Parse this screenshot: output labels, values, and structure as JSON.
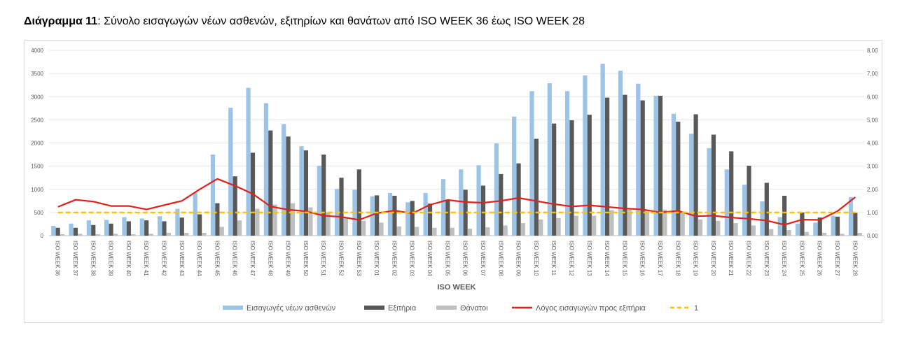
{
  "caption": {
    "label": "Διάγραμμα 11",
    "text": ": Σύνολο εισαγωγών νέων ασθενών, εξιτηρίων και θανάτων από ISO WEEK 36 έως ISO WEEK 28"
  },
  "chart_data": {
    "type": "bar",
    "title": "Διάγραμμα 11: Σύνολο εισαγωγών νέων ασθενών, εξιτηρίων και θανάτων από ISO WEEK 36 έως ISO WEEK 28",
    "xlabel": "ISO WEEK",
    "ylabel": "",
    "ylim": [
      0,
      4000
    ],
    "y2lim": [
      0,
      8
    ],
    "y_ticks": [
      "0",
      "500",
      "1000",
      "1500",
      "2000",
      "2500",
      "3000",
      "3500",
      "4000"
    ],
    "y2_ticks": [
      "0,00",
      "1,00",
      "2,00",
      "3,00",
      "4,00",
      "5,00",
      "6,00",
      "7,00",
      "8,00"
    ],
    "legend_position": "bottom",
    "categories": [
      "ISO WEEK 36",
      "ISO WEEK 37",
      "ISO WEEK 38",
      "ISO WEEK 39",
      "ISO WEEK 40",
      "ISO WEEK 41",
      "ISO WEEK 42",
      "ISO WEEK 43",
      "ISO WEEK 44",
      "ISO WEEK 45",
      "ISO WEEK 46",
      "ISO WEEK 47",
      "ISO WEEK 48",
      "ISO WEEK 49",
      "ISO WEEK 50",
      "ISO WEEK 51",
      "ISO WEEK 52",
      "ISO WEEK 53",
      "ISO WEEK 01",
      "ISO WEEK 02",
      "ISO WEEK 03",
      "ISO WEEK 04",
      "ISO WEEK 05",
      "ISO WEEK 06",
      "ISO WEEK 07",
      "ISO WEEK 08",
      "ISO WEEK 09",
      "ISO WEEK 10",
      "ISO WEEK 11",
      "ISO WEEK 12",
      "ISO WEEK 13",
      "ISO WEEK 14",
      "ISO WEEK 15",
      "ISO WEEK 16",
      "ISO WEEK 17",
      "ISO WEEK 18",
      "ISO WEEK 19",
      "ISO WEEK 20",
      "ISO WEEK 21",
      "ISO WEEK 22",
      "ISO WEEK 23",
      "ISO WEEK 24",
      "ISO WEEK 25",
      "ISO WEEK 26",
      "ISO WEEK 27",
      "ISO WEEK 28"
    ],
    "series": [
      {
        "name": "Εισαγωγές νέων ασθενών",
        "kind": "bar",
        "axis": "left",
        "color": "#9dc3e6",
        "values": [
          210,
          260,
          330,
          340,
          400,
          370,
          420,
          580,
          930,
          1750,
          2760,
          3190,
          2860,
          2410,
          1930,
          1510,
          1010,
          990,
          850,
          920,
          720,
          920,
          1220,
          1430,
          1520,
          1990,
          2570,
          3120,
          3290,
          3120,
          3460,
          3710,
          3560,
          3280,
          3020,
          2630,
          2200,
          1890,
          1430,
          1100,
          740,
          400,
          260,
          280,
          430,
          830
        ]
      },
      {
        "name": "Εξιτήρια",
        "kind": "bar",
        "axis": "left",
        "color": "#595959",
        "values": [
          170,
          170,
          230,
          260,
          310,
          330,
          310,
          390,
          460,
          700,
          1280,
          1790,
          2270,
          2140,
          1840,
          1750,
          1250,
          1430,
          870,
          860,
          750,
          690,
          780,
          990,
          1080,
          1330,
          1560,
          2090,
          2420,
          2490,
          2610,
          2980,
          3040,
          2920,
          3020,
          2460,
          2620,
          2180,
          1820,
          1510,
          1140,
          860,
          500,
          390,
          410,
          490
        ]
      },
      {
        "name": "Θάνατοι",
        "kind": "bar",
        "axis": "left",
        "color": "#bfbfbf",
        "values": [
          30,
          40,
          30,
          40,
          30,
          40,
          60,
          60,
          60,
          190,
          330,
          580,
          670,
          700,
          610,
          500,
          390,
          320,
          280,
          200,
          190,
          170,
          170,
          150,
          180,
          220,
          270,
          350,
          380,
          430,
          430,
          550,
          560,
          550,
          560,
          520,
          350,
          320,
          270,
          220,
          140,
          120,
          80,
          60,
          40,
          60
        ]
      },
      {
        "name": "Λόγος εισαγωγών προς εξιτήρια",
        "kind": "line",
        "axis": "right",
        "color": "#e0201b",
        "values": [
          1.24,
          1.55,
          1.47,
          1.28,
          1.28,
          1.13,
          1.32,
          1.5,
          2.0,
          2.45,
          2.15,
          1.8,
          1.26,
          1.12,
          1.05,
          0.86,
          0.81,
          0.68,
          0.97,
          1.08,
          0.96,
          1.33,
          1.54,
          1.45,
          1.42,
          1.5,
          1.63,
          1.49,
          1.36,
          1.26,
          1.31,
          1.24,
          1.17,
          1.13,
          1.0,
          1.07,
          0.84,
          0.86,
          0.78,
          0.73,
          0.65,
          0.47,
          0.69,
          0.68,
          1.06,
          1.66
        ]
      },
      {
        "name": "1",
        "kind": "line-dashed",
        "axis": "right",
        "color": "#ffc000",
        "values": [
          1,
          1,
          1,
          1,
          1,
          1,
          1,
          1,
          1,
          1,
          1,
          1,
          1,
          1,
          1,
          1,
          1,
          1,
          1,
          1,
          1,
          1,
          1,
          1,
          1,
          1,
          1,
          1,
          1,
          1,
          1,
          1,
          1,
          1,
          1,
          1,
          1,
          1,
          1,
          1,
          1,
          1,
          1,
          1,
          1,
          1
        ]
      }
    ]
  }
}
